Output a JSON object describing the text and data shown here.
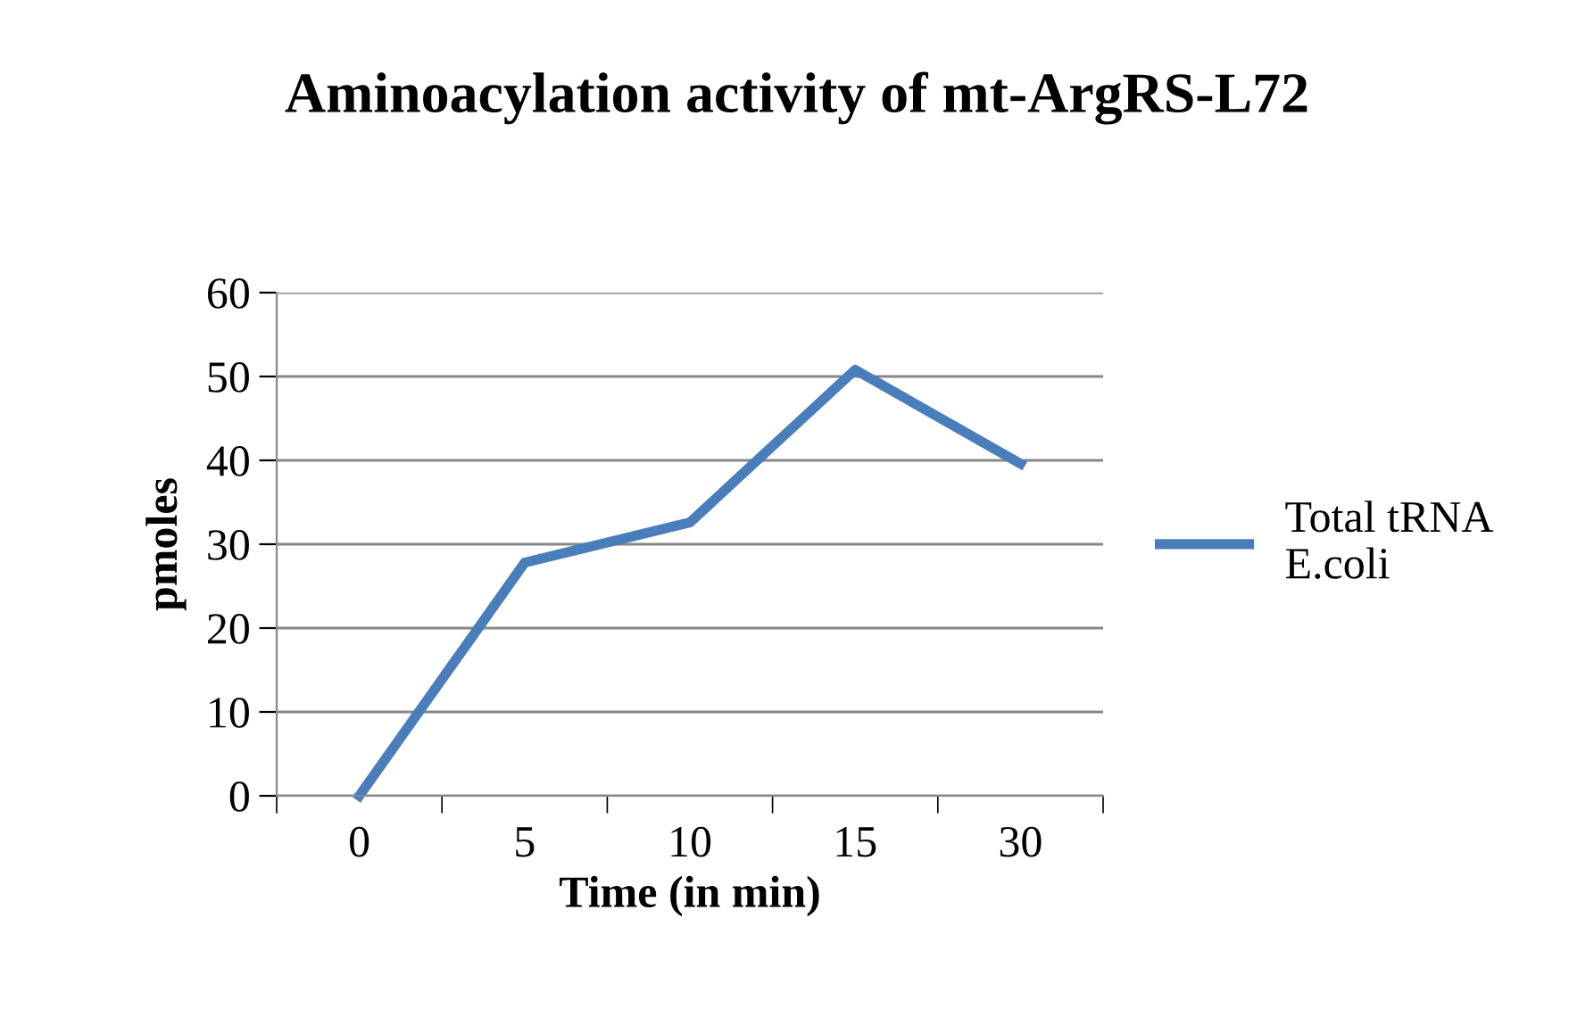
{
  "chart_data": {
    "type": "line",
    "title": "Aminoacylation activity of mt-ArgRS-L72",
    "xlabel": "Time (in min)",
    "ylabel": "pmoles",
    "categories": [
      "0",
      "5",
      "10",
      "15",
      "30"
    ],
    "series": [
      {
        "name": "Total tRNA E.coli",
        "color": "#4a7ebb",
        "values": [
          0,
          27.8,
          32.6,
          50.8,
          39.6
        ]
      }
    ],
    "ylim": [
      0,
      60
    ],
    "yticks": [
      0,
      10,
      20,
      30,
      40,
      50,
      60
    ],
    "grid": "y",
    "legend": "right",
    "marker": "none",
    "line_style": "solid"
  }
}
